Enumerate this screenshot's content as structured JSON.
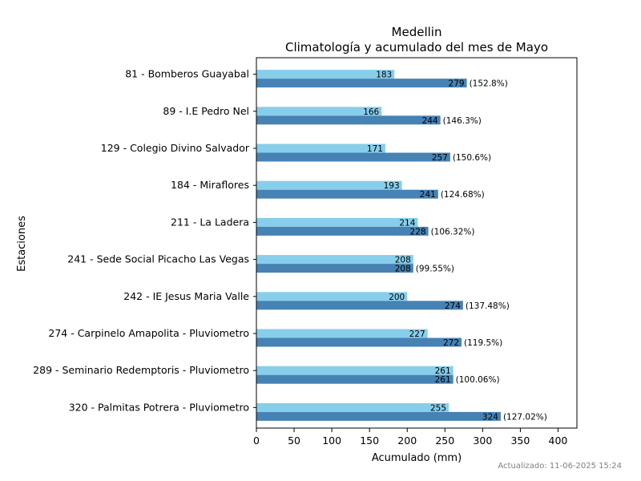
{
  "chart_data": {
    "type": "bar",
    "orientation": "horizontal",
    "title": "Medellin",
    "subtitle": "Climatología y acumulado del mes de Mayo",
    "xlabel": "Acumulado (mm)",
    "ylabel": "Estaciones",
    "xlim": [
      0,
      425
    ],
    "xticks": [
      0,
      50,
      100,
      150,
      200,
      250,
      300,
      350,
      400
    ],
    "categories": [
      "81 - Bomberos Guayabal",
      "89 - I.E Pedro Nel",
      "129 - Colegio Divino Salvador",
      "184 - Miraflores",
      "211 - La Ladera",
      "241 - Sede Social Picacho Las Vegas",
      "242 - IE Jesus Maria Valle",
      "274 - Carpinelo Amapolita - Pluviometro",
      "289 - Seminario Redemptoris - Pluviometro",
      "320 - Palmitas Potrera - Pluviometro"
    ],
    "series": [
      {
        "color": "#87CEEB",
        "values": [
          183,
          166,
          171,
          193,
          214,
          208,
          200,
          227,
          261,
          255
        ]
      },
      {
        "color": "#4682B4",
        "values": [
          279,
          244,
          257,
          241,
          228,
          208,
          274,
          272,
          261,
          324
        ]
      }
    ],
    "percent_labels": [
      "(152.8%)",
      "(146.3%)",
      "(150.6%)",
      "(124.68%)",
      "(106.32%)",
      "(99.55%)",
      "(137.48%)",
      "(119.5%)",
      "(100.06%)",
      "(127.02%)"
    ],
    "grid": false,
    "legend": "none"
  },
  "footer": {
    "updated": "Actualizado: 11-06-2025 15:24"
  }
}
